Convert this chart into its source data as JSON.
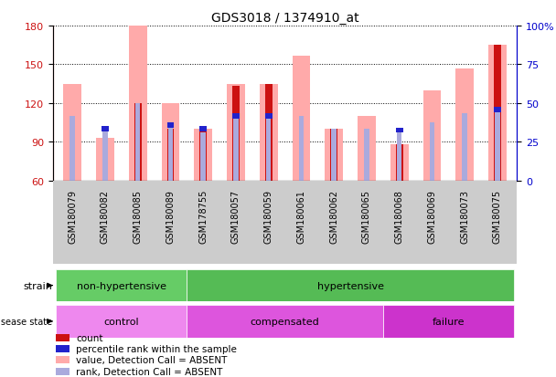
{
  "title": "GDS3018 / 1374910_at",
  "samples": [
    "GSM180079",
    "GSM180082",
    "GSM180085",
    "GSM180089",
    "GSM178755",
    "GSM180057",
    "GSM180059",
    "GSM180061",
    "GSM180062",
    "GSM180065",
    "GSM180068",
    "GSM180069",
    "GSM180073",
    "GSM180075"
  ],
  "value_pink": [
    135,
    93,
    180,
    120,
    100,
    135,
    135,
    157,
    100,
    110,
    88,
    130,
    147,
    165
  ],
  "rank_lightblue": [
    110,
    100,
    120,
    103,
    97,
    108,
    110,
    110,
    100,
    100,
    99,
    105,
    112,
    115
  ],
  "count_red": [
    null,
    null,
    120,
    100,
    100,
    133,
    135,
    null,
    100,
    null,
    88,
    null,
    null,
    165
  ],
  "percentile_blue": [
    null,
    100,
    null,
    103,
    100,
    110,
    110,
    null,
    null,
    null,
    99,
    null,
    null,
    115
  ],
  "ylim": [
    60,
    180
  ],
  "yticks_left": [
    60,
    90,
    120,
    150,
    180
  ],
  "yticks_right": [
    0,
    25,
    50,
    75,
    100
  ],
  "strain_groups": [
    {
      "label": "non-hypertensive",
      "start": 0,
      "end": 4,
      "color": "#66cc66"
    },
    {
      "label": "hypertensive",
      "start": 4,
      "end": 14,
      "color": "#55bb55"
    }
  ],
  "disease_groups": [
    {
      "label": "control",
      "start": 0,
      "end": 4,
      "color": "#ee88ee"
    },
    {
      "label": "compensated",
      "start": 4,
      "end": 10,
      "color": "#dd55dd"
    },
    {
      "label": "failure",
      "start": 10,
      "end": 14,
      "color": "#cc33cc"
    }
  ],
  "legend_items": [
    {
      "label": "count",
      "color": "#cc1111"
    },
    {
      "label": "percentile rank within the sample",
      "color": "#2222cc"
    },
    {
      "label": "value, Detection Call = ABSENT",
      "color": "#ffaaaa"
    },
    {
      "label": "rank, Detection Call = ABSENT",
      "color": "#aaaadd"
    }
  ],
  "color_red": "#cc1111",
  "color_blue": "#2222cc",
  "color_pink": "#ffaaaa",
  "color_lightblue": "#aaaadd",
  "color_ax_left": "#cc1111",
  "color_ax_right": "#0000cc",
  "bg_color": "#ffffff",
  "xtick_bg": "#cccccc"
}
